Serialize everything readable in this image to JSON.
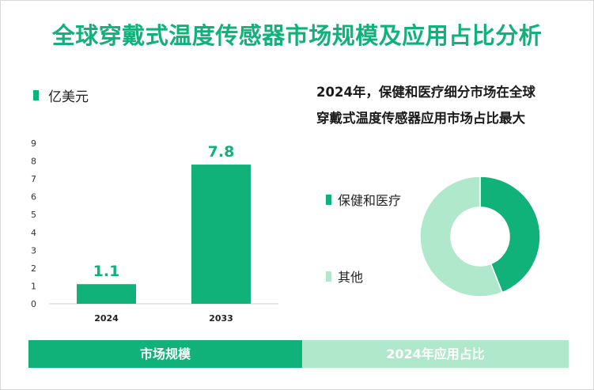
{
  "title": "全球穿戴式温度传感器市场规模及应用占比分析",
  "unit_legend": "亿美元",
  "pie_heading_line1": "2024年，保健和医疗细分市场在全球",
  "pie_heading_line2": "穿戴式温度传感器应用市场占比最大",
  "bottom_left_label": "市场规模",
  "bottom_right_label": "2024年应用占比",
  "colors": {
    "primary": "#10b27a",
    "secondary": "#b0e8cc"
  },
  "chart_data": [
    {
      "type": "bar",
      "categories": [
        "2024",
        "2033"
      ],
      "values": [
        1.1,
        7.8
      ],
      "data_labels": [
        "1.1",
        "7.8"
      ],
      "yticks": [
        "0",
        "1",
        "2",
        "3",
        "4",
        "5",
        "6",
        "7",
        "8",
        "9"
      ],
      "ylim": [
        0,
        9
      ],
      "unit": "亿美元"
    },
    {
      "type": "pie",
      "style": "donut",
      "labels": [
        "保健和医疗",
        "其他"
      ],
      "values": [
        44,
        56
      ]
    }
  ]
}
